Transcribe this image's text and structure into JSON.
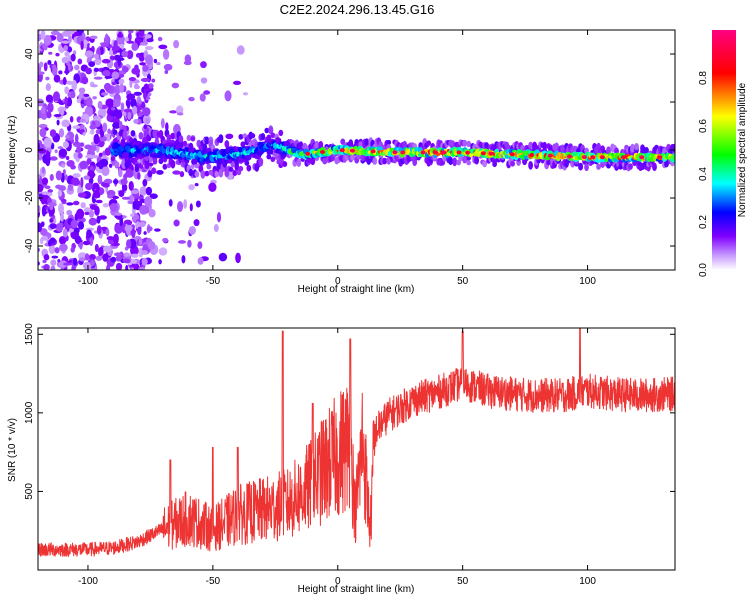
{
  "title": "C2E2.2024.296.13.45.G16",
  "colors": {
    "snr_line": "#ee3333",
    "background": "#ffffff",
    "colormap": [
      "#ffffff",
      "#8000ff",
      "#0000ff",
      "#00ffff",
      "#00ff00",
      "#ffff00",
      "#ff0000",
      "#ff0080"
    ]
  },
  "chart_data": [
    {
      "type": "heatmap",
      "xlabel": "Height of straight line (km)",
      "ylabel": "Frequency (Hz)",
      "xlim": [
        -120,
        135
      ],
      "ylim": [
        -50,
        50
      ],
      "x_ticks": [
        -100,
        -50,
        0,
        50,
        100
      ],
      "y_ticks": [
        -40,
        -20,
        0,
        20,
        40
      ],
      "colorbar": {
        "label": "Normalized spectral amplitude",
        "range": [
          0,
          1
        ],
        "ticks": [
          "0.0",
          "0.2",
          "0.4",
          "0.6",
          "0.8"
        ]
      },
      "description_points": {
        "noise_region_km": [
          -120,
          -75
        ],
        "signal_band": [
          {
            "x": -88,
            "freq": 0,
            "amp": 0.35
          },
          {
            "x": -70,
            "freq": 0,
            "amp": 0.35
          },
          {
            "x": -55,
            "freq": -3,
            "amp": 0.35
          },
          {
            "x": -40,
            "freq": -2,
            "amp": 0.35
          },
          {
            "x": -25,
            "freq": 2,
            "amp": 0.3
          },
          {
            "x": -15,
            "freq": -2,
            "amp": 0.6
          },
          {
            "x": 0,
            "freq": 0,
            "amp": 0.7
          },
          {
            "x": 25,
            "freq": -1,
            "amp": 0.8
          },
          {
            "x": 50,
            "freq": -1,
            "amp": 0.75
          },
          {
            "x": 75,
            "freq": -2,
            "amp": 0.75
          },
          {
            "x": 100,
            "freq": -3,
            "amp": 0.8
          },
          {
            "x": 135,
            "freq": -3,
            "amp": 0.7
          }
        ]
      }
    },
    {
      "type": "line",
      "xlabel": "Height of straight line (km)",
      "ylabel": "SNR (10 * v/v)",
      "xlim": [
        -120,
        135
      ],
      "ylim": [
        0,
        1540
      ],
      "x_ticks": [
        -100,
        -50,
        0,
        50,
        100
      ],
      "y_ticks": [
        500,
        1000,
        1500
      ],
      "series": [
        {
          "x": [
            -120,
            -100,
            -90,
            -80,
            -70,
            -60,
            -50,
            -40,
            -30,
            -20,
            -15,
            -10,
            -5,
            0,
            5,
            7,
            10,
            13,
            15,
            20,
            30,
            40,
            50,
            60,
            70,
            80,
            90,
            100,
            110,
            120,
            135
          ],
          "values": [
            130,
            130,
            140,
            180,
            260,
            330,
            260,
            350,
            380,
            420,
            480,
            550,
            650,
            730,
            820,
            350,
            830,
            250,
            880,
            980,
            1080,
            1130,
            1190,
            1140,
            1120,
            1110,
            1110,
            1140,
            1120,
            1110,
            1120
          ],
          "spikes": [
            {
              "x": -67,
              "y": 700
            },
            {
              "x": -50,
              "y": 780
            },
            {
              "x": -40,
              "y": 780
            },
            {
              "x": -22,
              "y": 1520
            },
            {
              "x": -10,
              "y": 1060
            },
            {
              "x": 5,
              "y": 1470
            },
            {
              "x": 50,
              "y": 1520
            },
            {
              "x": 97,
              "y": 1540
            }
          ]
        }
      ]
    }
  ]
}
